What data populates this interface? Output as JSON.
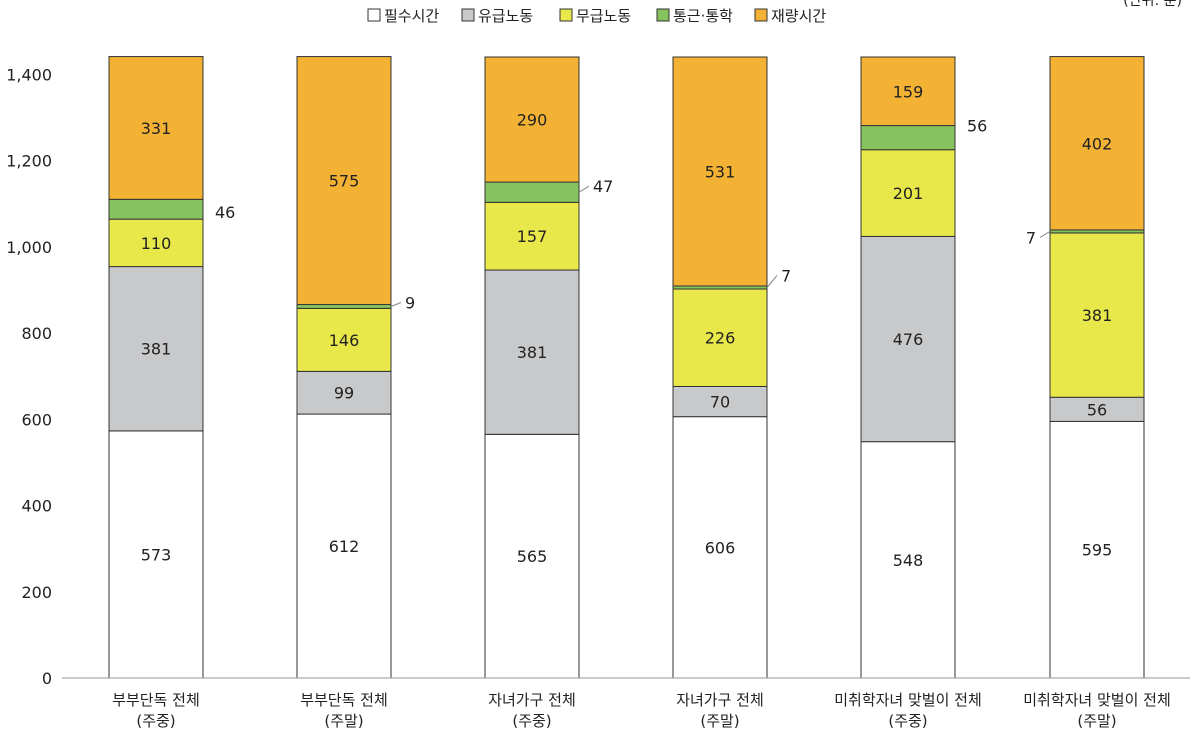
{
  "chart_data": {
    "type": "bar",
    "stacked": true,
    "unit": "(단위: 분)",
    "categories": [
      [
        "부부단독 전체",
        "(주중)"
      ],
      [
        "부부단독 전체",
        "(주말)"
      ],
      [
        "자녀가구 전체",
        "(주중)"
      ],
      [
        "자녀가구 전체",
        "(주말)"
      ],
      [
        "미취학자녀 맞벌이 전체",
        "(주중)"
      ],
      [
        "미취학자녀 맞벌이 전체",
        "(주말)"
      ]
    ],
    "series": [
      {
        "name": "필수시간",
        "color": "#ffffff",
        "values": [
          573,
          612,
          565,
          606,
          548,
          595
        ]
      },
      {
        "name": "유급노동",
        "color": "#c8c9cb",
        "values": [
          381,
          99,
          381,
          70,
          476,
          56
        ]
      },
      {
        "name": "무급노동",
        "color": "#e8e84b",
        "values": [
          110,
          146,
          157,
          226,
          201,
          381
        ]
      },
      {
        "name": "통근·통학",
        "color": "#86c35e",
        "values": [
          46,
          9,
          47,
          7,
          56,
          7
        ]
      },
      {
        "name": "재량시간",
        "color": "#f3b234",
        "values": [
          331,
          575,
          290,
          531,
          159,
          402
        ]
      }
    ],
    "ylim": [
      0,
      1440
    ],
    "yticks": [
      0,
      200,
      400,
      600,
      800,
      1000,
      1200,
      1400
    ],
    "ytick_labels": [
      "0",
      "200",
      "400",
      "600",
      "800",
      "1,000",
      "1,200",
      "1,400"
    ],
    "legend_position": "top-center",
    "grid": false
  }
}
